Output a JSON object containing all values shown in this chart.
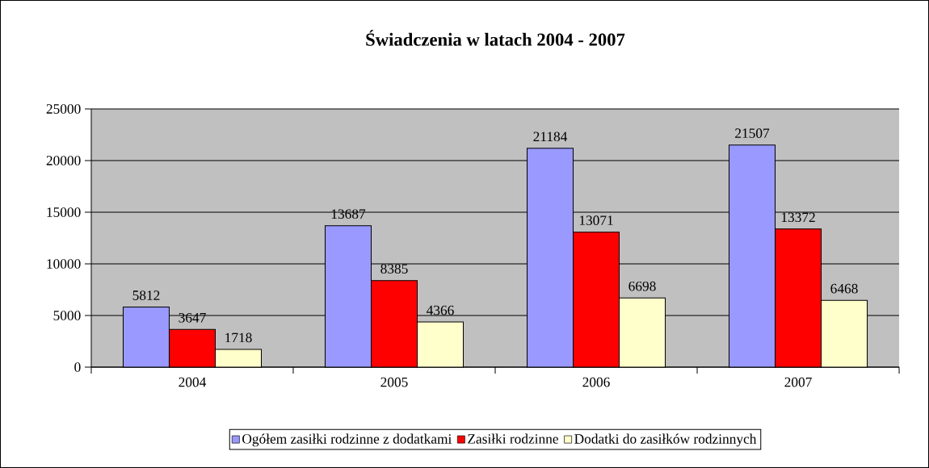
{
  "chart_data": {
    "type": "bar",
    "title": "Świadczenia w latach 2004 - 2007",
    "categories": [
      "2004",
      "2005",
      "2006",
      "2007"
    ],
    "series": [
      {
        "name": "Ogółem zasiłki rodzinne z dodatkami",
        "color": "#9999ff",
        "values": [
          5812,
          13687,
          21184,
          21507
        ]
      },
      {
        "name": "Zasiłki rodzinne",
        "color": "#ff0000",
        "values": [
          3647,
          8385,
          13071,
          13372
        ]
      },
      {
        "name": "Dodatki do zasiłków rodzinnych",
        "color": "#ffffcc",
        "values": [
          1718,
          4366,
          6698,
          6468
        ]
      }
    ],
    "ylim": [
      0,
      25000
    ],
    "yticks": [
      0,
      5000,
      10000,
      15000,
      20000,
      25000
    ],
    "grid": "y",
    "legend": "bottom",
    "data_labels": true
  }
}
